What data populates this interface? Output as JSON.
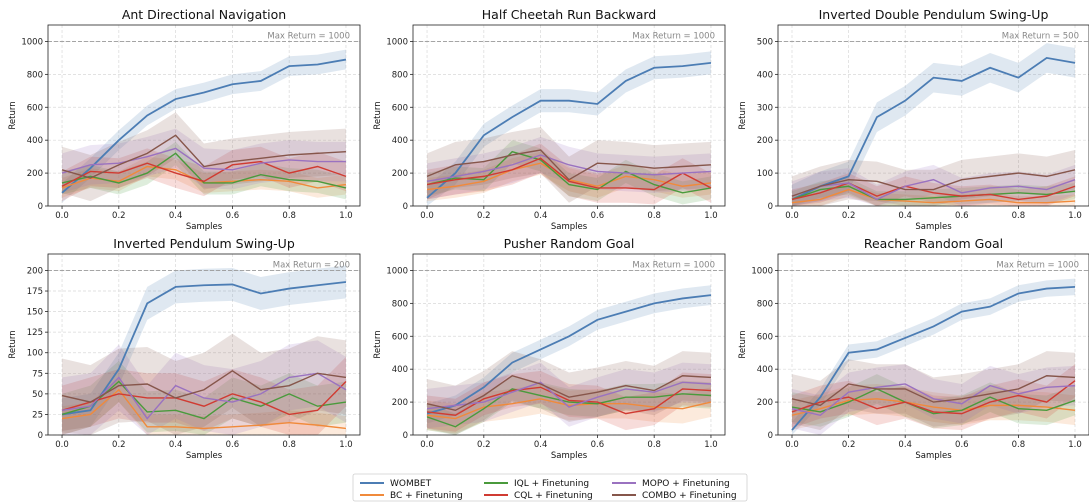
{
  "colors": {
    "WOMBET": "#4c7db4",
    "BC + Finetuning": "#f08a3b",
    "IQL + Finetuning": "#4a9a3c",
    "CQL + Finetuning": "#d03b32",
    "MOPO + Finetuning": "#9a72c0",
    "COMBO + Finetuning": "#86564b",
    "max_line": "#999999",
    "grid": "#d9d9d9"
  },
  "legend": [
    "WOMBET",
    "BC + Finetuning",
    "IQL + Finetuning",
    "CQL + Finetuning",
    "MOPO + Finetuning",
    "COMBO + Finetuning"
  ],
  "chart_data": [
    {
      "type": "line",
      "title": "Ant Directional Navigation",
      "xlabel": "Samples",
      "ylabel": "Return",
      "xlim": [
        0,
        1
      ],
      "ylim": [
        0,
        1100
      ],
      "yticks": [
        0,
        200,
        400,
        600,
        800,
        1000
      ],
      "xticks": [
        0.0,
        0.2,
        0.4,
        0.6,
        0.8,
        1.0
      ],
      "max_return": 1000,
      "max_label": "Max Return = 1000",
      "x": [
        0,
        0.1,
        0.2,
        0.3,
        0.4,
        0.5,
        0.6,
        0.7,
        0.8,
        0.9,
        1.0
      ],
      "series": [
        {
          "name": "WOMBET",
          "values": [
            80,
            230,
            400,
            550,
            650,
            690,
            740,
            760,
            850,
            860,
            890
          ],
          "band": 60
        },
        {
          "name": "BC + Finetuning",
          "values": [
            110,
            170,
            150,
            240,
            220,
            140,
            150,
            160,
            150,
            110,
            130
          ],
          "band": 60
        },
        {
          "name": "IQL + Finetuning",
          "values": [
            140,
            180,
            140,
            200,
            320,
            140,
            140,
            190,
            160,
            150,
            110
          ],
          "band": 70
        },
        {
          "name": "CQL + Finetuning",
          "values": [
            120,
            210,
            200,
            260,
            200,
            150,
            250,
            270,
            200,
            240,
            180
          ],
          "band": 90
        },
        {
          "name": "MOPO + Finetuning",
          "values": [
            200,
            250,
            260,
            300,
            350,
            230,
            220,
            260,
            280,
            270,
            270
          ],
          "band": 120
        },
        {
          "name": "COMBO + Finetuning",
          "values": [
            220,
            170,
            250,
            320,
            430,
            240,
            270,
            290,
            310,
            320,
            330
          ],
          "band": 140
        }
      ]
    },
    {
      "type": "line",
      "title": "Half Cheetah Run Backward",
      "xlabel": "Samples",
      "ylabel": "Return",
      "xlim": [
        0,
        1
      ],
      "ylim": [
        0,
        1100
      ],
      "yticks": [
        0,
        200,
        400,
        600,
        800,
        1000
      ],
      "xticks": [
        0.0,
        0.2,
        0.4,
        0.6,
        0.8,
        1.0
      ],
      "max_return": 1000,
      "max_label": "Max Return = 1000",
      "x": [
        0,
        0.1,
        0.2,
        0.3,
        0.4,
        0.5,
        0.6,
        0.7,
        0.8,
        0.9,
        1.0
      ],
      "series": [
        {
          "name": "WOMBET",
          "values": [
            50,
            200,
            430,
            540,
            640,
            640,
            620,
            760,
            840,
            850,
            870
          ],
          "band": 70
        },
        {
          "name": "BC + Finetuning",
          "values": [
            100,
            120,
            150,
            220,
            260,
            160,
            120,
            180,
            160,
            120,
            140
          ],
          "band": 70
        },
        {
          "name": "IQL + Finetuning",
          "values": [
            130,
            170,
            160,
            330,
            280,
            130,
            100,
            210,
            130,
            80,
            110
          ],
          "band": 70
        },
        {
          "name": "CQL + Finetuning",
          "values": [
            130,
            160,
            180,
            220,
            290,
            150,
            110,
            110,
            100,
            200,
            110
          ],
          "band": 90
        },
        {
          "name": "MOPO + Finetuning",
          "values": [
            150,
            180,
            210,
            250,
            310,
            250,
            210,
            200,
            190,
            200,
            210
          ],
          "band": 110
        },
        {
          "name": "COMBO + Finetuning",
          "values": [
            180,
            250,
            270,
            310,
            340,
            160,
            260,
            250,
            230,
            240,
            250
          ],
          "band": 140
        }
      ]
    },
    {
      "type": "line",
      "title": "Inverted Double Pendulum Swing-Up",
      "xlabel": "Samples",
      "ylabel": "Return",
      "xlim": [
        0,
        1
      ],
      "ylim": [
        0,
        550
      ],
      "yticks": [
        0,
        100,
        200,
        300,
        400,
        500
      ],
      "xticks": [
        0.0,
        0.2,
        0.4,
        0.6,
        0.8,
        1.0
      ],
      "max_return": 500,
      "max_label": "Max Return = 500",
      "x": [
        0,
        0.1,
        0.2,
        0.3,
        0.4,
        0.5,
        0.6,
        0.7,
        0.8,
        0.9,
        1.0
      ],
      "series": [
        {
          "name": "WOMBET",
          "values": [
            20,
            60,
            90,
            270,
            320,
            390,
            380,
            420,
            390,
            450,
            435
          ],
          "band": 45
        },
        {
          "name": "BC + Finetuning",
          "values": [
            10,
            20,
            50,
            20,
            15,
            10,
            15,
            20,
            10,
            10,
            15
          ],
          "band": 20
        },
        {
          "name": "IQL + Finetuning",
          "values": [
            20,
            50,
            60,
            20,
            20,
            25,
            30,
            35,
            40,
            35,
            45
          ],
          "band": 25
        },
        {
          "name": "CQL + Finetuning",
          "values": [
            20,
            40,
            70,
            30,
            60,
            40,
            30,
            35,
            20,
            30,
            60
          ],
          "band": 30
        },
        {
          "name": "MOPO + Finetuning",
          "values": [
            30,
            60,
            70,
            20,
            60,
            80,
            40,
            55,
            60,
            50,
            80
          ],
          "band": 45
        },
        {
          "name": "COMBO + Finetuning",
          "values": [
            30,
            60,
            80,
            75,
            50,
            50,
            80,
            90,
            100,
            90,
            110
          ],
          "band": 60
        }
      ]
    },
    {
      "type": "line",
      "title": "Inverted Pendulum Swing-Up",
      "xlabel": "Samples",
      "ylabel": "Return",
      "xlim": [
        0,
        1
      ],
      "ylim": [
        0,
        220
      ],
      "yticks": [
        0,
        25,
        50,
        75,
        100,
        125,
        150,
        175,
        200
      ],
      "xticks": [
        0.0,
        0.2,
        0.4,
        0.6,
        0.8,
        1.0
      ],
      "max_return": 200,
      "max_label": "Max Return = 200",
      "x": [
        0,
        0.1,
        0.2,
        0.3,
        0.4,
        0.5,
        0.6,
        0.7,
        0.8,
        0.9,
        1.0
      ],
      "series": [
        {
          "name": "WOMBET",
          "values": [
            25,
            30,
            80,
            160,
            180,
            182,
            183,
            172,
            178,
            182,
            186
          ],
          "band": 20
        },
        {
          "name": "BC + Finetuning",
          "values": [
            20,
            25,
            55,
            10,
            10,
            8,
            10,
            12,
            15,
            12,
            8
          ],
          "band": 15
        },
        {
          "name": "IQL + Finetuning",
          "values": [
            25,
            35,
            65,
            28,
            30,
            20,
            45,
            35,
            50,
            35,
            40
          ],
          "band": 25
        },
        {
          "name": "CQL + Finetuning",
          "values": [
            30,
            40,
            50,
            45,
            45,
            35,
            50,
            40,
            25,
            30,
            65
          ],
          "band": 30
        },
        {
          "name": "MOPO + Finetuning",
          "values": [
            30,
            35,
            70,
            20,
            60,
            45,
            40,
            50,
            70,
            75,
            55
          ],
          "band": 40
        },
        {
          "name": "COMBO + Finetuning",
          "values": [
            48,
            40,
            60,
            62,
            45,
            55,
            78,
            55,
            60,
            75,
            70
          ],
          "band": 45
        }
      ]
    },
    {
      "type": "line",
      "title": "Pusher Random Goal",
      "xlabel": "Samples",
      "ylabel": "Return",
      "xlim": [
        0,
        1
      ],
      "ylim": [
        0,
        1100
      ],
      "yticks": [
        0,
        200,
        400,
        600,
        800,
        1000
      ],
      "xticks": [
        0.0,
        0.2,
        0.4,
        0.6,
        0.8,
        1.0
      ],
      "max_return": 1000,
      "max_label": "Max Return = 1000",
      "x": [
        0,
        0.1,
        0.2,
        0.3,
        0.4,
        0.5,
        0.6,
        0.7,
        0.8,
        0.9,
        1.0
      ],
      "series": [
        {
          "name": "WOMBET",
          "values": [
            130,
            180,
            290,
            440,
            520,
            600,
            700,
            750,
            800,
            830,
            850
          ],
          "band": 60
        },
        {
          "name": "BC + Finetuning",
          "values": [
            120,
            100,
            170,
            190,
            220,
            180,
            190,
            190,
            170,
            160,
            200
          ],
          "band": 90
        },
        {
          "name": "IQL + Finetuning",
          "values": [
            110,
            50,
            160,
            280,
            240,
            200,
            190,
            230,
            230,
            250,
            240
          ],
          "band": 80
        },
        {
          "name": "CQL + Finetuning",
          "values": [
            140,
            120,
            220,
            270,
            290,
            210,
            200,
            130,
            160,
            280,
            270
          ],
          "band": 100
        },
        {
          "name": "MOPO + Finetuning",
          "values": [
            160,
            180,
            200,
            260,
            320,
            170,
            230,
            280,
            260,
            320,
            310
          ],
          "band": 120
        },
        {
          "name": "COMBO + Finetuning",
          "values": [
            190,
            150,
            240,
            360,
            310,
            230,
            260,
            300,
            270,
            360,
            350
          ],
          "band": 150
        }
      ]
    },
    {
      "type": "line",
      "title": "Reacher Random Goal",
      "xlabel": "Samples",
      "ylabel": "Return",
      "xlim": [
        0,
        1
      ],
      "ylim": [
        0,
        1100
      ],
      "yticks": [
        0,
        200,
        400,
        600,
        800,
        1000
      ],
      "xticks": [
        0.0,
        0.2,
        0.4,
        0.6,
        0.8,
        1.0
      ],
      "max_return": 1000,
      "max_label": "Max Return = 1000",
      "x": [
        0,
        0.1,
        0.2,
        0.3,
        0.4,
        0.5,
        0.6,
        0.7,
        0.8,
        0.9,
        1.0
      ],
      "series": [
        {
          "name": "WOMBET",
          "values": [
            30,
            230,
            500,
            520,
            590,
            660,
            750,
            780,
            860,
            890,
            900
          ],
          "band": 50
        },
        {
          "name": "BC + Finetuning",
          "values": [
            120,
            160,
            210,
            220,
            200,
            170,
            150,
            180,
            180,
            170,
            150
          ],
          "band": 90
        },
        {
          "name": "IQL + Finetuning",
          "values": [
            170,
            140,
            200,
            280,
            200,
            130,
            150,
            230,
            160,
            150,
            210
          ],
          "band": 90
        },
        {
          "name": "CQL + Finetuning",
          "values": [
            140,
            200,
            230,
            160,
            200,
            140,
            130,
            200,
            240,
            200,
            330
          ],
          "band": 100
        },
        {
          "name": "MOPO + Finetuning",
          "values": [
            160,
            120,
            260,
            290,
            310,
            220,
            190,
            300,
            250,
            290,
            300
          ],
          "band": 120
        },
        {
          "name": "COMBO + Finetuning",
          "values": [
            220,
            180,
            310,
            280,
            280,
            200,
            220,
            250,
            280,
            360,
            350
          ],
          "band": 150
        }
      ]
    }
  ]
}
